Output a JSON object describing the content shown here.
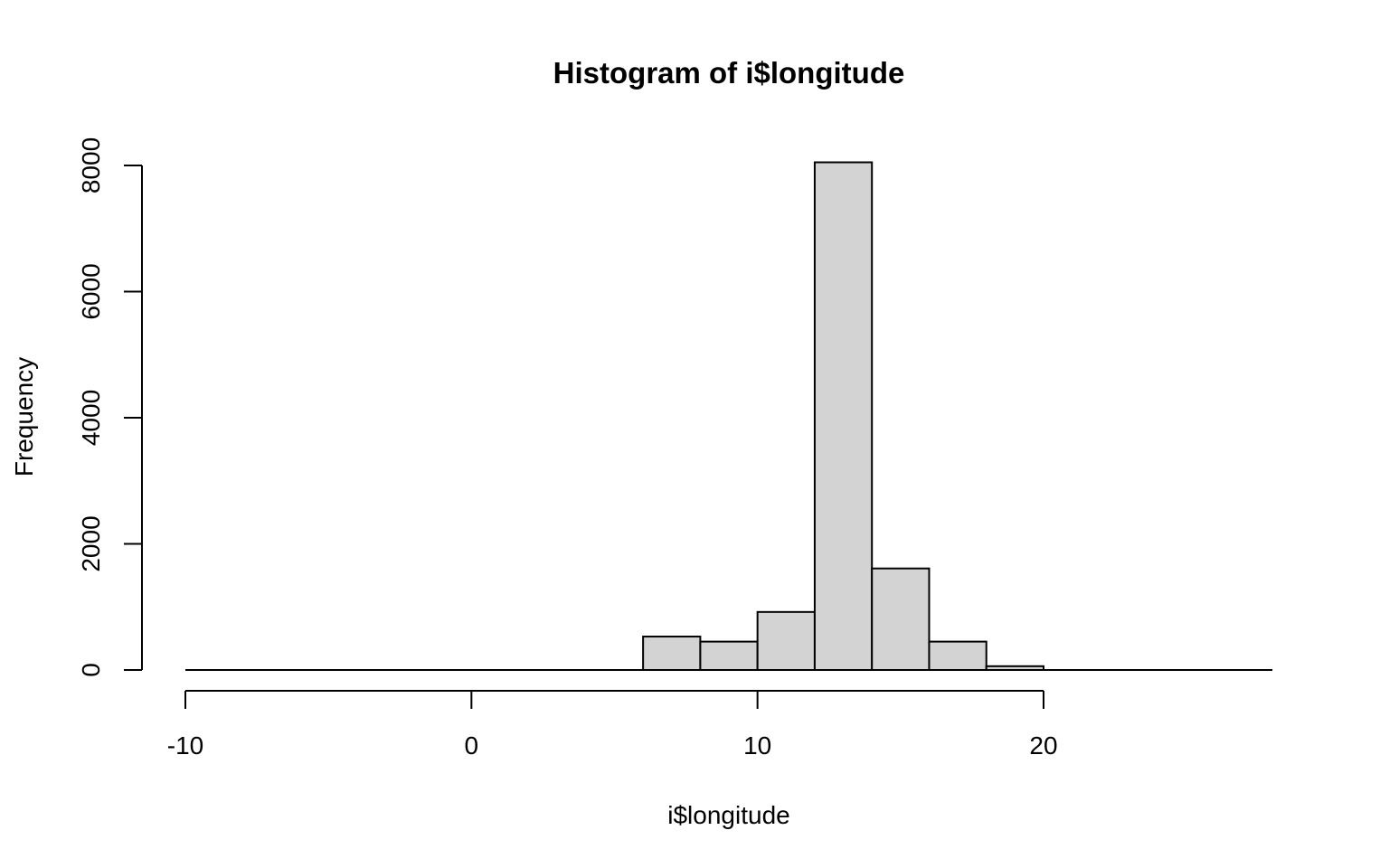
{
  "chart_data": {
    "type": "bar",
    "title": "Histogram of i$longitude",
    "xlabel": "i$longitude",
    "ylabel": "Frequency",
    "bins": [
      {
        "x0": -10,
        "x1": -8,
        "count": 0
      },
      {
        "x0": -8,
        "x1": -6,
        "count": 0
      },
      {
        "x0": -6,
        "x1": -4,
        "count": 0
      },
      {
        "x0": -4,
        "x1": -2,
        "count": 0
      },
      {
        "x0": -2,
        "x1": 0,
        "count": 0
      },
      {
        "x0": 0,
        "x1": 2,
        "count": 0
      },
      {
        "x0": 2,
        "x1": 4,
        "count": 0
      },
      {
        "x0": 4,
        "x1": 6,
        "count": 0
      },
      {
        "x0": 6,
        "x1": 8,
        "count": 530
      },
      {
        "x0": 8,
        "x1": 10,
        "count": 450
      },
      {
        "x0": 10,
        "x1": 12,
        "count": 920
      },
      {
        "x0": 12,
        "x1": 14,
        "count": 8050
      },
      {
        "x0": 14,
        "x1": 16,
        "count": 1610
      },
      {
        "x0": 16,
        "x1": 18,
        "count": 450
      },
      {
        "x0": 18,
        "x1": 20,
        "count": 60
      },
      {
        "x0": 20,
        "x1": 22,
        "count": 0
      },
      {
        "x0": 22,
        "x1": 24,
        "count": 0
      },
      {
        "x0": 24,
        "x1": 26,
        "count": 0
      },
      {
        "x0": 26,
        "x1": 28,
        "count": 0
      }
    ],
    "xlim": [
      -10,
      28
    ],
    "ylim": [
      0,
      8000
    ],
    "x_ticks": [
      -10,
      0,
      10,
      20
    ],
    "x_tick_labels": [
      "-10",
      "0",
      "10",
      "20"
    ],
    "y_ticks": [
      0,
      2000,
      4000,
      6000,
      8000
    ],
    "y_tick_labels": [
      "0",
      "2000",
      "4000",
      "6000",
      "8000"
    ],
    "bar_fill": "#d3d3d3",
    "bar_stroke": "#000000",
    "grid": false,
    "legend": "none"
  }
}
